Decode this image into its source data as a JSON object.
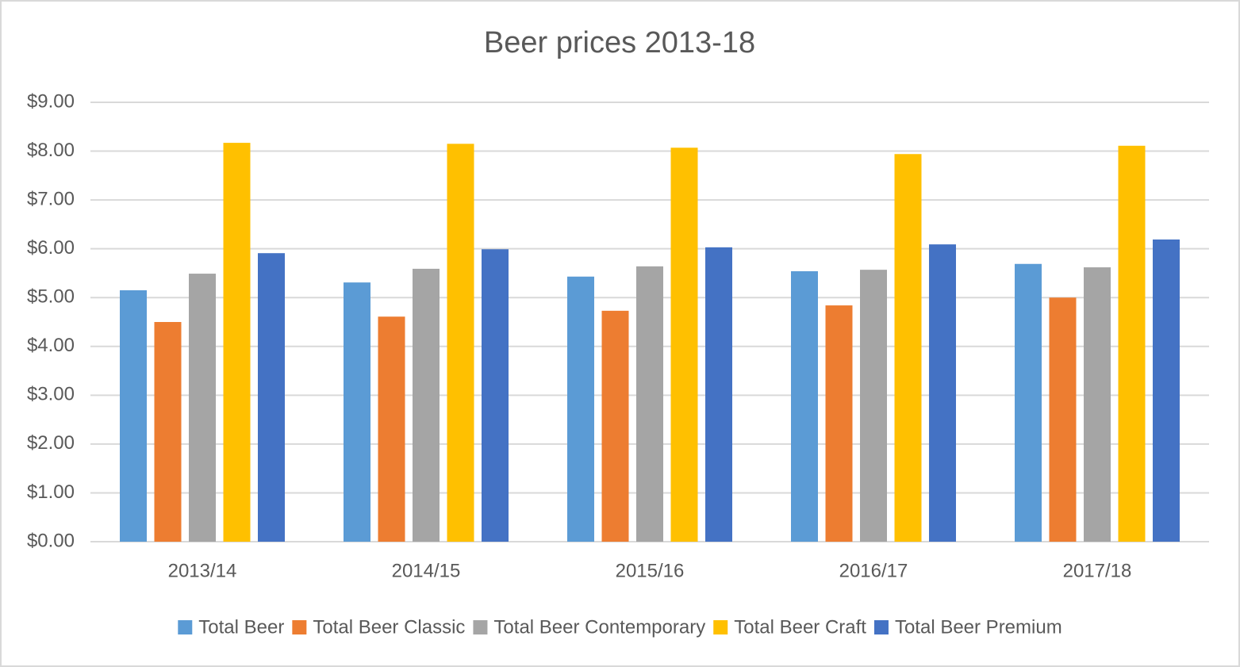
{
  "chart_data": {
    "type": "bar",
    "title": "Beer prices 2013-18",
    "categories": [
      "2013/14",
      "2014/15",
      "2015/16",
      "2016/17",
      "2017/18"
    ],
    "series": [
      {
        "name": "Total Beer",
        "color": "#5b9bd5",
        "values": [
          5.15,
          5.31,
          5.43,
          5.54,
          5.69
        ]
      },
      {
        "name": "Total Beer Classic",
        "color": "#ed7d31",
        "values": [
          4.5,
          4.61,
          4.73,
          4.84,
          5.0
        ]
      },
      {
        "name": "Total Beer Contemporary",
        "color": "#a5a5a5",
        "values": [
          5.49,
          5.59,
          5.64,
          5.57,
          5.62
        ]
      },
      {
        "name": "Total Beer Craft",
        "color": "#ffc000",
        "values": [
          8.17,
          8.15,
          8.07,
          7.94,
          8.11
        ]
      },
      {
        "name": "Total Beer Premium",
        "color": "#4472c4",
        "values": [
          5.91,
          5.99,
          6.03,
          6.09,
          6.19
        ]
      }
    ],
    "ylim": [
      0,
      9
    ],
    "yticks": [
      {
        "value": 0,
        "label": "$0.00"
      },
      {
        "value": 1,
        "label": "$1.00"
      },
      {
        "value": 2,
        "label": "$2.00"
      },
      {
        "value": 3,
        "label": "$3.00"
      },
      {
        "value": 4,
        "label": "$4.00"
      },
      {
        "value": 5,
        "label": "$5.00"
      },
      {
        "value": 6,
        "label": "$6.00"
      },
      {
        "value": 7,
        "label": "$7.00"
      },
      {
        "value": 8,
        "label": "$8.00"
      },
      {
        "value": 9,
        "label": "$9.00"
      }
    ],
    "grid": true,
    "legend": "bottom"
  }
}
